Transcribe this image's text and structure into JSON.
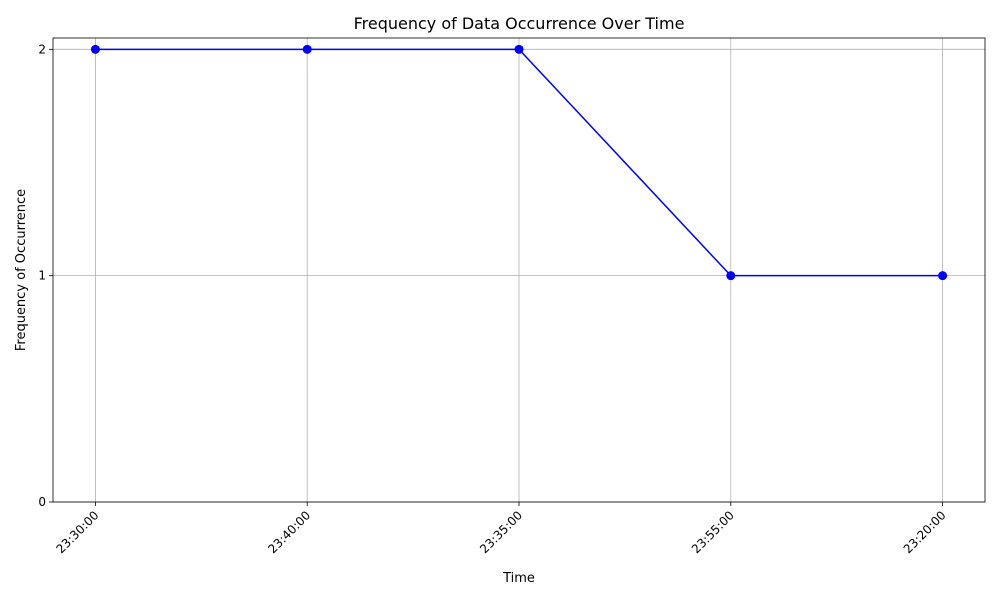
{
  "chart_data": {
    "type": "line",
    "title": "Frequency of Data Occurrence Over Time",
    "xlabel": "Time",
    "ylabel": "Frequency of Occurrence",
    "categories": [
      "23:30:00",
      "23:40:00",
      "23:35:00",
      "23:55:00",
      "23:20:00"
    ],
    "series": [
      {
        "values": [
          2,
          2,
          2,
          1,
          1
        ],
        "color": "#0000ff",
        "marker": "circle"
      }
    ],
    "ylim": [
      0,
      2.05
    ],
    "yticks": [
      0,
      1,
      2
    ],
    "grid": true,
    "xtick_rotation_deg": 45
  }
}
